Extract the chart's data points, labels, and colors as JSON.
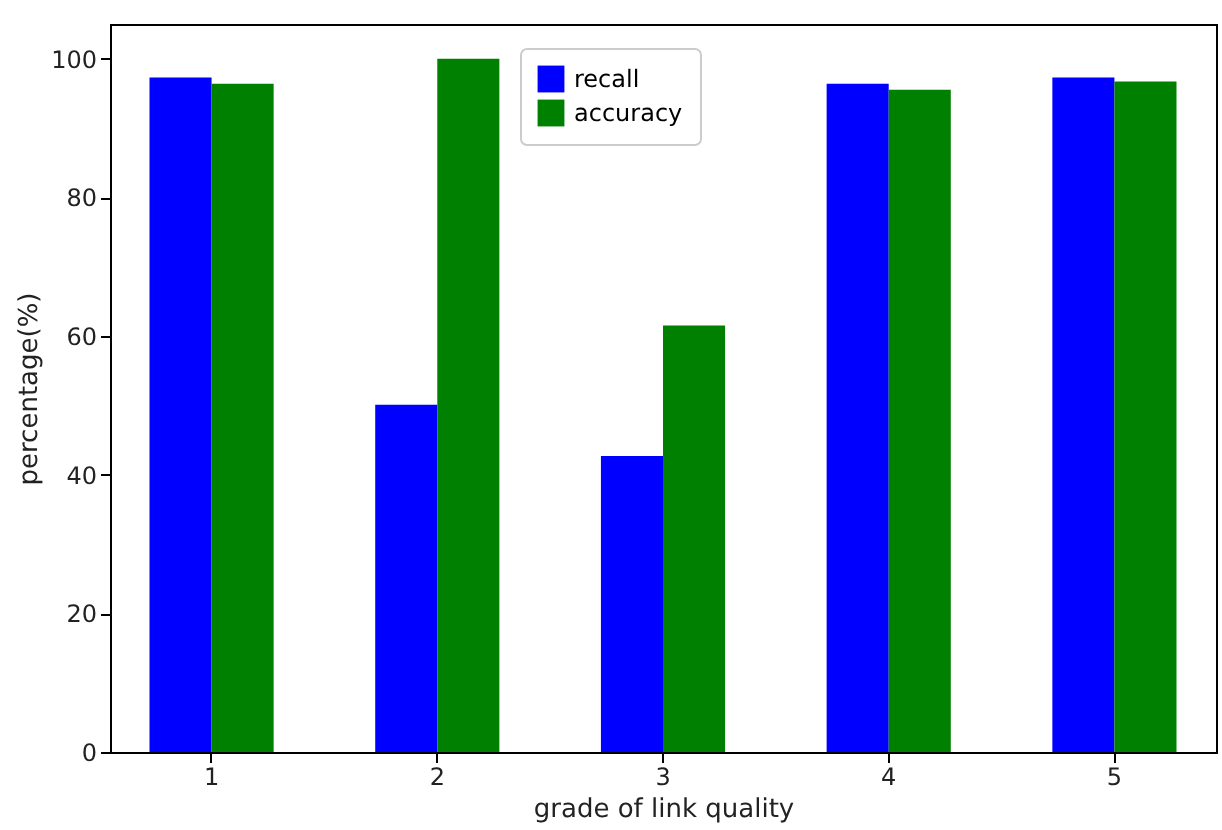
{
  "chart_data": {
    "type": "bar",
    "xlabel": "grade of link quality",
    "ylabel": "percentage(%)",
    "categories": [
      "1",
      "2",
      "3",
      "4",
      "5"
    ],
    "series": [
      {
        "name": "recall",
        "color": "#0000ff",
        "values": [
          97.3,
          50.1,
          42.7,
          96.4,
          97.3
        ]
      },
      {
        "name": "accuracy",
        "color": "#008000",
        "values": [
          96.4,
          100,
          61.5,
          95.5,
          96.7
        ]
      }
    ],
    "ylim": [
      0,
      105
    ],
    "yticks": [
      0,
      20,
      40,
      60,
      80,
      100
    ],
    "legend": "top",
    "grid": false
  }
}
